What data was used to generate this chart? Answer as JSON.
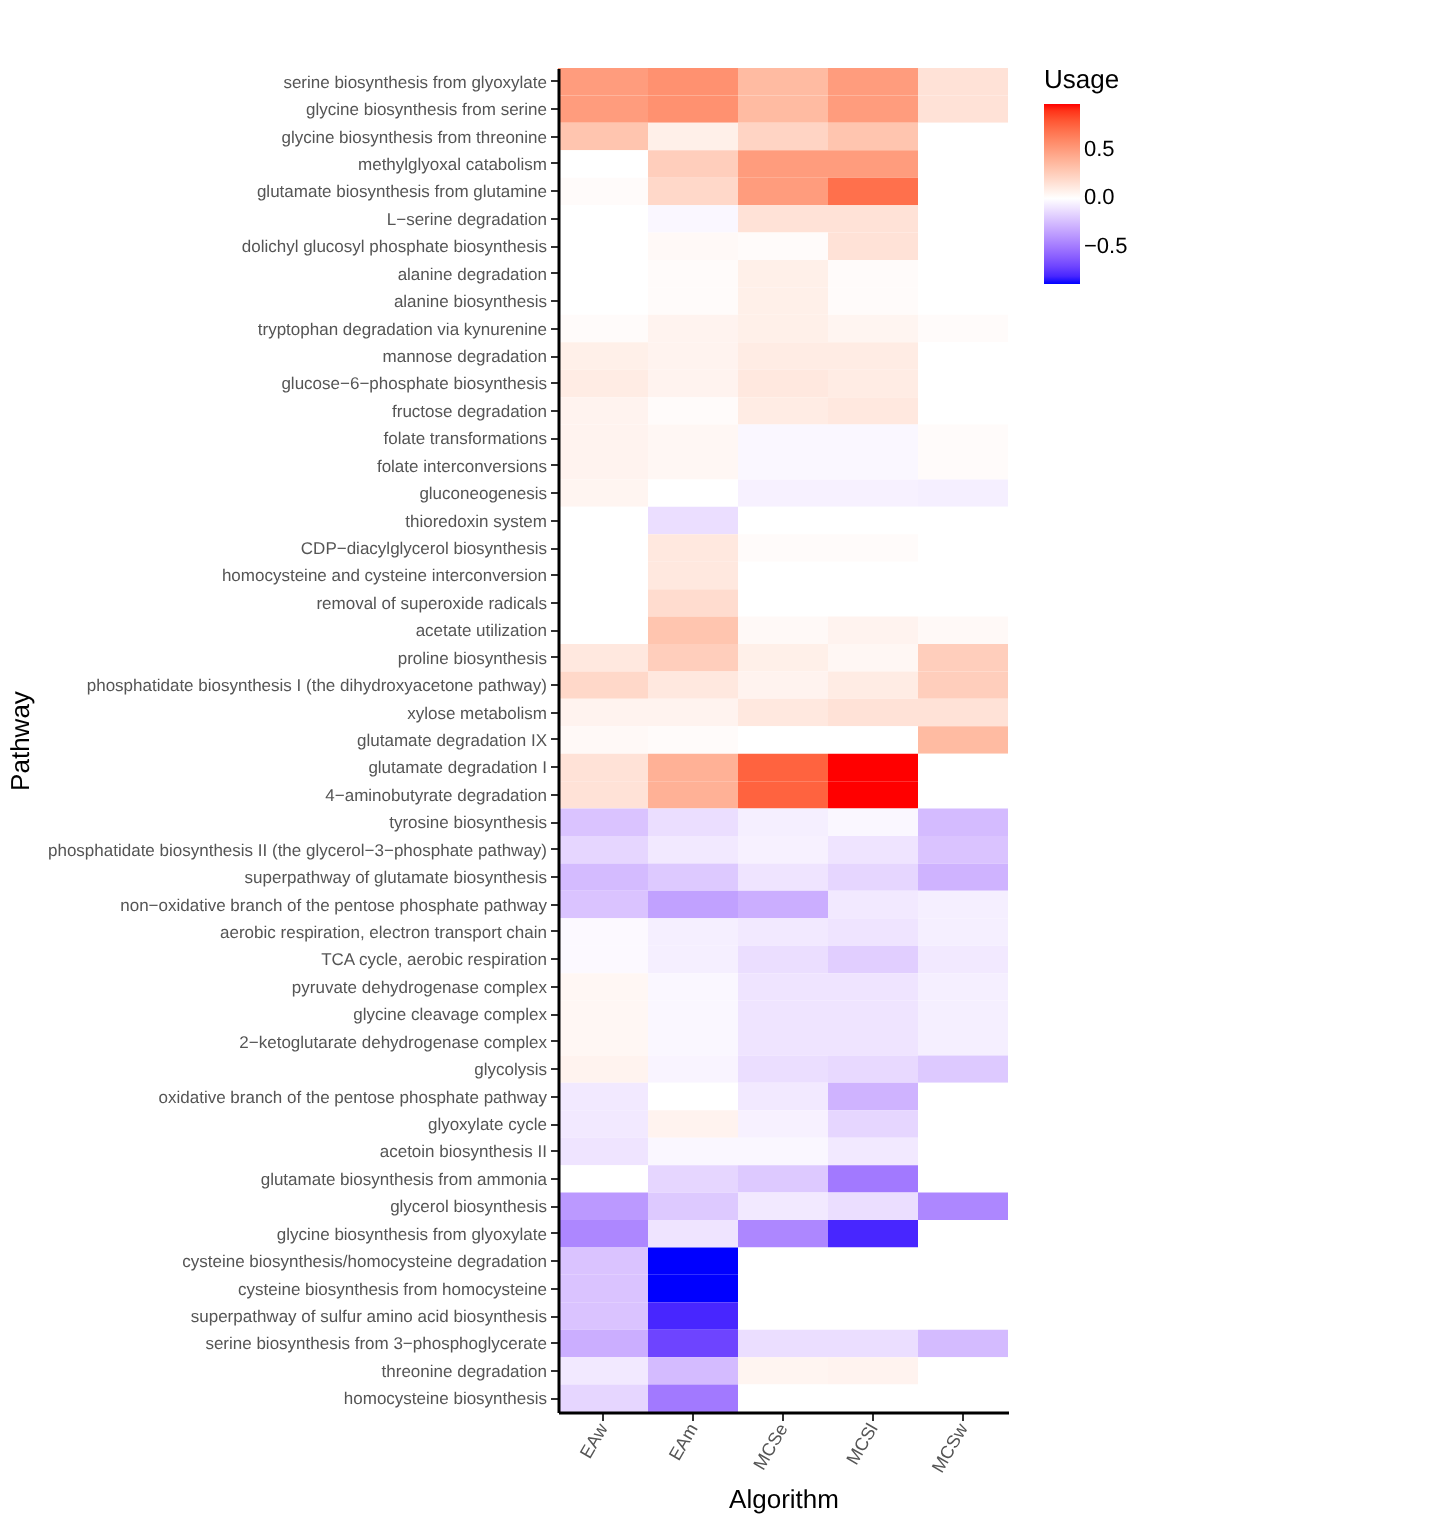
{
  "chart_data": {
    "type": "heatmap",
    "xlabel": "Algorithm",
    "ylabel": "Pathway",
    "clabel": "Usage",
    "categories": [
      "EAw",
      "EAm",
      "MCSe",
      "MCSl",
      "MCSw"
    ],
    "y_categories": [
      "serine biosynthesis from glyoxylate",
      "glycine biosynthesis from serine",
      "glycine biosynthesis from threonine",
      "methylglyoxal catabolism",
      "glutamate biosynthesis from glutamine",
      "L−serine degradation",
      "dolichyl glucosyl phosphate biosynthesis",
      "alanine degradation",
      "alanine biosynthesis",
      "tryptophan degradation via kynurenine",
      "mannose degradation",
      "glucose−6−phosphate biosynthesis",
      "fructose degradation",
      "folate transformations",
      "folate interconversions",
      "gluconeogenesis",
      "thioredoxin system",
      "CDP−diacylglycerol biosynthesis",
      "homocysteine and cysteine interconversion",
      "removal of superoxide radicals",
      "acetate utilization",
      "proline biosynthesis",
      "phosphatidate biosynthesis I (the dihydroxyacetone pathway)",
      "xylose metabolism",
      "glutamate degradation IX",
      "glutamate degradation I",
      "4−aminobutyrate degradation",
      "tyrosine biosynthesis",
      "phosphatidate biosynthesis II (the glycerol−3−phosphate pathway)",
      "superpathway of glutamate biosynthesis",
      "non−oxidative branch of the pentose phosphate pathway",
      "aerobic respiration, electron transport chain",
      "TCA cycle, aerobic respiration",
      "pyruvate dehydrogenase complex",
      "glycine cleavage complex",
      "2−ketoglutarate dehydrogenase complex",
      "glycolysis",
      "oxidative branch of the pentose phosphate pathway",
      "glyoxylate cycle",
      "acetoin biosynthesis II",
      "glutamate biosynthesis from ammonia",
      "glycerol biosynthesis",
      "glycine biosynthesis from glyoxylate",
      "cysteine biosynthesis/homocysteine degradation",
      "cysteine biosynthesis from homocysteine",
      "superpathway of sulfur amino acid biosynthesis",
      "serine biosynthesis from 3−phosphoglycerate",
      "threonine degradation",
      "homocysteine biosynthesis"
    ],
    "cells": [
      [
        0.5,
        0.55,
        0.35,
        0.5,
        0.15
      ],
      [
        0.5,
        0.55,
        0.35,
        0.5,
        0.15
      ],
      [
        0.3,
        0.08,
        0.22,
        0.3,
        0
      ],
      [
        0,
        0.25,
        0.5,
        0.5,
        0
      ],
      [
        0.02,
        0.2,
        0.5,
        0.7,
        0
      ],
      [
        0,
        -0.03,
        0.15,
        0.15,
        0
      ],
      [
        0,
        0.03,
        0.02,
        0.15,
        0
      ],
      [
        0,
        0.02,
        0.08,
        0.02,
        0
      ],
      [
        0,
        0.02,
        0.08,
        0.02,
        0
      ],
      [
        0.02,
        0.06,
        0.08,
        0.05,
        0.02
      ],
      [
        0.08,
        0.06,
        0.1,
        0.1,
        0
      ],
      [
        0.1,
        0.06,
        0.12,
        0.1,
        0
      ],
      [
        0.06,
        0.02,
        0.1,
        0.12,
        0
      ],
      [
        0.06,
        0.04,
        -0.03,
        -0.03,
        0.02
      ],
      [
        0.06,
        0.04,
        -0.03,
        -0.03,
        0.02
      ],
      [
        0.05,
        0,
        -0.05,
        -0.05,
        -0.06
      ],
      [
        0,
        -0.12,
        0,
        0,
        0
      ],
      [
        0,
        0.12,
        0.02,
        0.02,
        0
      ],
      [
        0,
        0.12,
        0,
        0,
        0
      ],
      [
        0,
        0.18,
        0,
        0,
        0
      ],
      [
        0,
        0.3,
        0.03,
        0.06,
        0.03
      ],
      [
        0.12,
        0.25,
        0.08,
        0.04,
        0.25
      ],
      [
        0.2,
        0.12,
        0.06,
        0.1,
        0.25
      ],
      [
        0.06,
        0.06,
        0.12,
        0.15,
        0.15
      ],
      [
        0.03,
        0.02,
        0,
        0,
        0.35
      ],
      [
        0.15,
        0.4,
        0.75,
        0.97,
        0
      ],
      [
        0.15,
        0.4,
        0.75,
        0.97,
        0
      ],
      [
        -0.22,
        -0.12,
        -0.06,
        -0.03,
        -0.25
      ],
      [
        -0.15,
        -0.08,
        -0.05,
        -0.1,
        -0.22
      ],
      [
        -0.25,
        -0.2,
        -0.1,
        -0.15,
        -0.28
      ],
      [
        -0.22,
        -0.35,
        -0.3,
        -0.08,
        -0.06
      ],
      [
        -0.02,
        -0.06,
        -0.08,
        -0.1,
        -0.06
      ],
      [
        -0.02,
        -0.06,
        -0.12,
        -0.18,
        -0.08
      ],
      [
        0.04,
        -0.03,
        -0.1,
        -0.1,
        -0.06
      ],
      [
        0.04,
        -0.03,
        -0.1,
        -0.1,
        -0.06
      ],
      [
        0.04,
        -0.03,
        -0.1,
        -0.1,
        -0.06
      ],
      [
        0.06,
        -0.04,
        -0.12,
        -0.14,
        -0.2
      ],
      [
        -0.08,
        0,
        -0.08,
        -0.28,
        0
      ],
      [
        -0.08,
        0.06,
        -0.05,
        -0.15,
        0
      ],
      [
        -0.1,
        -0.03,
        -0.03,
        -0.08,
        0
      ],
      [
        0,
        -0.15,
        -0.2,
        -0.5,
        0
      ],
      [
        -0.38,
        -0.2,
        -0.08,
        -0.12,
        -0.45
      ],
      [
        -0.45,
        -0.1,
        -0.45,
        -0.8,
        0
      ],
      [
        -0.22,
        -0.88,
        0,
        0,
        0
      ],
      [
        -0.22,
        -0.88,
        0,
        0,
        0
      ],
      [
        -0.22,
        -0.8,
        0,
        0,
        0
      ],
      [
        -0.3,
        -0.7,
        -0.12,
        -0.12,
        -0.25
      ],
      [
        -0.08,
        -0.25,
        0.05,
        0.06,
        0
      ],
      [
        -0.15,
        -0.5,
        0,
        0,
        0
      ]
    ],
    "clim": [
      -0.88,
      0.97
    ],
    "cticks": [
      0.5,
      {
        "value": 0,
        "label": "0.0"
      },
      {
        "value": -0.5,
        "label": "−0.5"
      }
    ]
  }
}
